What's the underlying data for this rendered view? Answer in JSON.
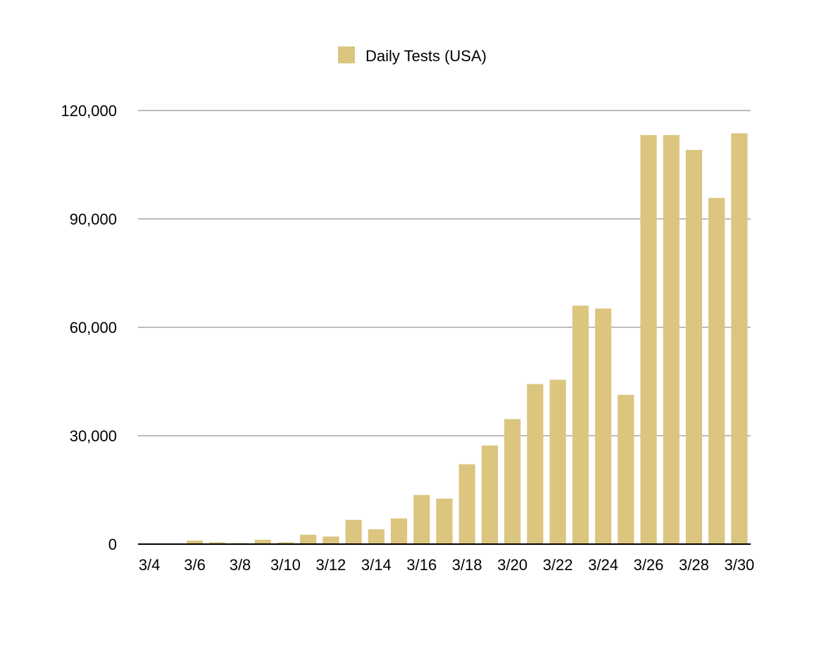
{
  "chart_data": {
    "type": "bar",
    "title": "",
    "xlabel": "",
    "ylabel": "",
    "legend": {
      "placement": "top-center"
    },
    "series": [
      {
        "name": "Daily Tests (USA)",
        "color": "#dbc57f",
        "values": [
          100,
          150,
          1000,
          500,
          300,
          1200,
          500,
          2600,
          2100,
          6700,
          4100,
          7100,
          13600,
          12600,
          22100,
          27300,
          34600,
          44300,
          45500,
          66000,
          65200,
          41300,
          113200,
          113200,
          109100,
          95800,
          113700
        ]
      }
    ],
    "categories": [
      "3/4",
      "3/5",
      "3/6",
      "3/7",
      "3/8",
      "3/9",
      "3/10",
      "3/11",
      "3/12",
      "3/13",
      "3/14",
      "3/15",
      "3/16",
      "3/17",
      "3/18",
      "3/19",
      "3/20",
      "3/21",
      "3/22",
      "3/23",
      "3/24",
      "3/25",
      "3/26",
      "3/27",
      "3/28",
      "3/29",
      "3/30"
    ],
    "x_tick_labels": [
      "3/4",
      "3/6",
      "3/8",
      "3/10",
      "3/12",
      "3/14",
      "3/16",
      "3/18",
      "3/20",
      "3/22",
      "3/24",
      "3/26",
      "3/28",
      "3/30"
    ],
    "ylim": [
      0,
      120000
    ],
    "yticks": [
      0,
      30000,
      60000,
      90000,
      120000
    ],
    "ytick_labels": [
      "0",
      "30,000",
      "60,000",
      "90,000",
      "120,000"
    ],
    "grid": true,
    "gridline_color": "#bcbcbc",
    "axis_color": "#000000"
  }
}
